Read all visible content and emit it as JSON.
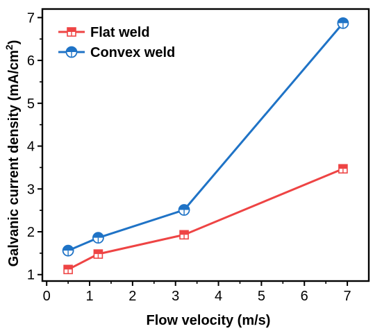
{
  "chart_data": {
    "type": "line",
    "title": "",
    "xlabel": "Flow velocity (m/s)",
    "ylabel": "Galvanic current density (mA/cm",
    "ylabel_superscript": "2",
    "ylabel_suffix": ")",
    "xlim": [
      -0.1,
      7.5
    ],
    "ylim": [
      0.85,
      7.2
    ],
    "xticks": [
      0,
      1,
      2,
      3,
      4,
      5,
      6,
      7
    ],
    "yticks": [
      1,
      2,
      3,
      4,
      5,
      6,
      7
    ],
    "legend_position": "top-left",
    "grid": false,
    "series": [
      {
        "name": "Flat weld",
        "color": "#ee4444",
        "marker": "half-filled-square",
        "x": [
          0.5,
          1.2,
          3.2,
          6.9
        ],
        "y": [
          1.12,
          1.48,
          1.93,
          3.47
        ]
      },
      {
        "name": "Convex weld",
        "color": "#1f73c6",
        "marker": "half-filled-circle",
        "x": [
          0.5,
          1.2,
          3.2,
          6.9
        ],
        "y": [
          1.56,
          1.86,
          2.51,
          6.87
        ]
      }
    ]
  }
}
